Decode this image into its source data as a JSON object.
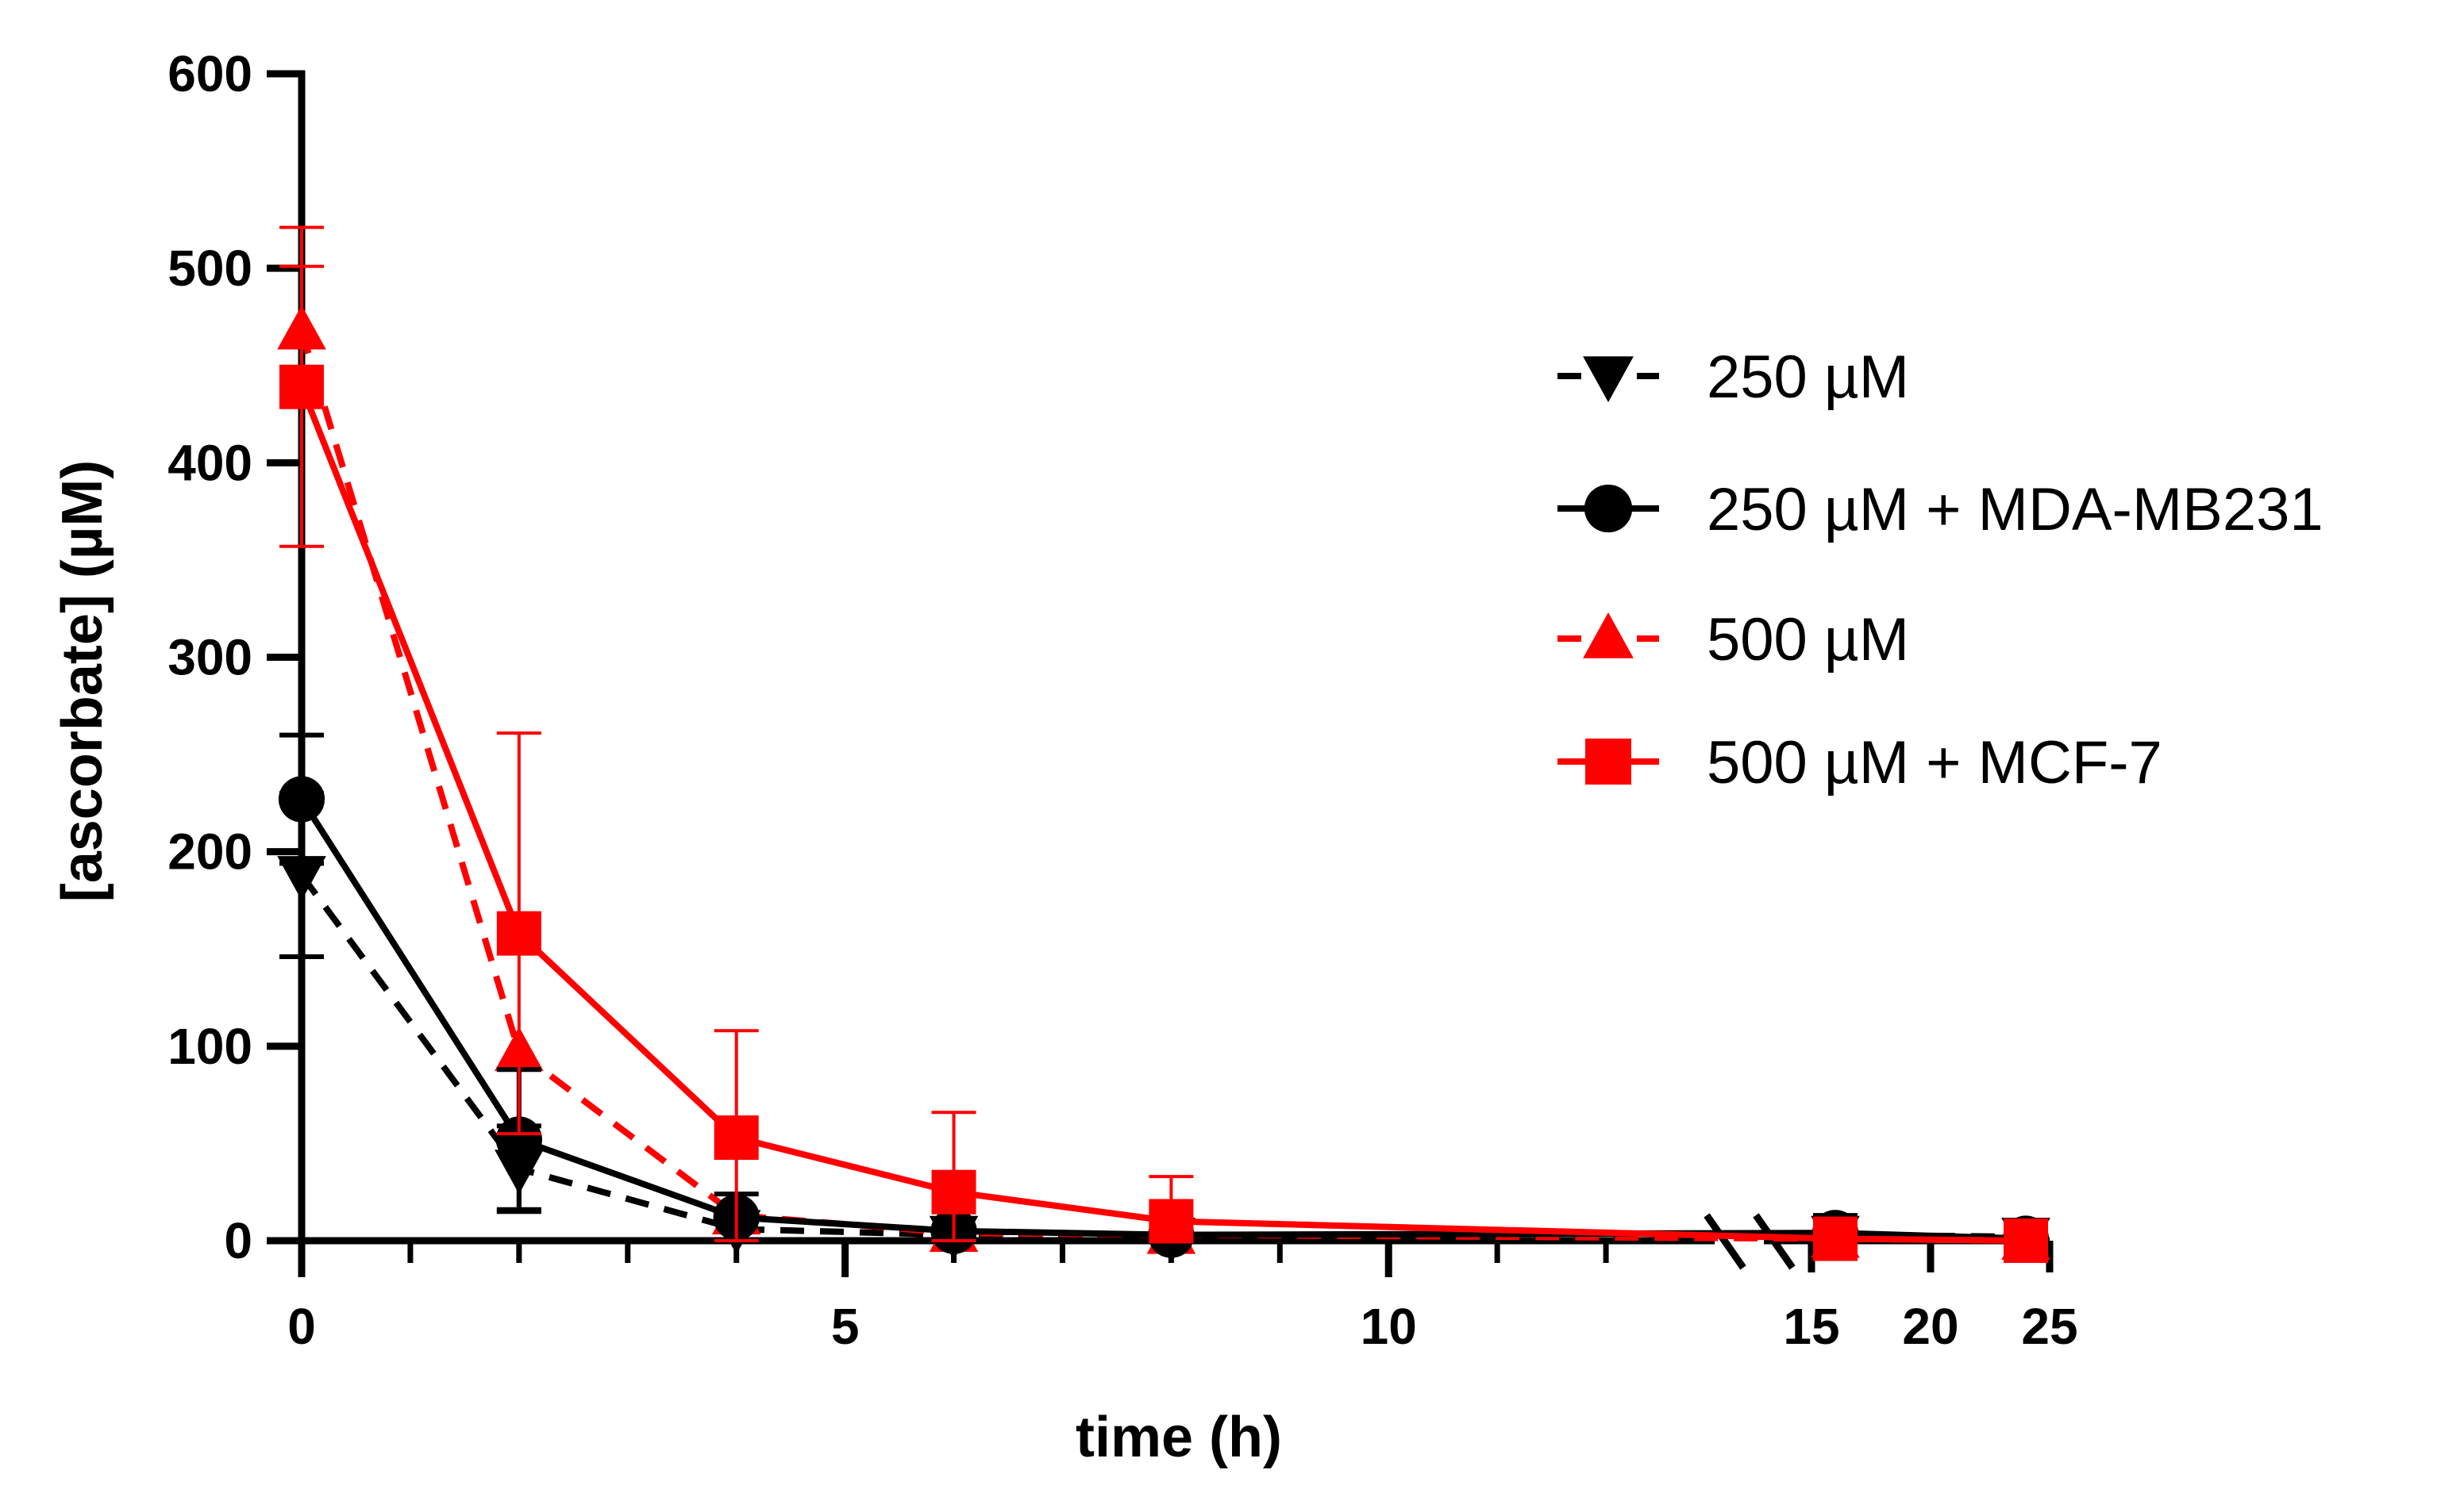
{
  "chart_data": {
    "type": "line",
    "title": "",
    "xlabel": "time (h)",
    "ylabel": "[ascorbate] (µM)",
    "ylim": [
      0,
      600
    ],
    "y_ticks": [
      0,
      100,
      200,
      300,
      400,
      500,
      600
    ],
    "x_axis_segments": [
      {
        "range": [
          0,
          13
        ],
        "major_ticks": [
          0,
          5,
          10
        ],
        "minor_ticks": [
          1,
          2,
          3,
          4,
          6,
          7,
          8,
          9,
          11,
          12
        ]
      },
      {
        "range": [
          13,
          25
        ],
        "major_ticks": [
          15,
          20,
          25
        ]
      }
    ],
    "x_tick_labels": [
      "0",
      "5",
      "10",
      "15",
      "20",
      "25"
    ],
    "axis_break": "between 13 and 15",
    "legend_position": "right",
    "series": [
      {
        "name": "250 µM",
        "color": "#000000",
        "line_style": "dashed",
        "marker": "triangle-down",
        "x": [
          0,
          2,
          4,
          6,
          8,
          16,
          24
        ],
        "y": [
          188,
          37,
          6,
          3,
          2,
          3,
          2
        ],
        "err": [
          42,
          22,
          0,
          0,
          0,
          0,
          0
        ]
      },
      {
        "name": "250 µM + MDA-MB231",
        "color": "#000000",
        "line_style": "solid",
        "marker": "circle",
        "x": [
          0,
          2,
          4,
          6,
          8,
          16,
          24
        ],
        "y": [
          227,
          52,
          12,
          5,
          3,
          4,
          1
        ],
        "err": [
          33,
          36,
          12,
          0,
          0,
          9,
          8
        ]
      },
      {
        "name": "500 µM",
        "color": "#ff0000",
        "line_style": "dashed",
        "marker": "triangle-up",
        "x": [
          0,
          2,
          4,
          6,
          8,
          16,
          24
        ],
        "y": [
          468,
          97,
          13,
          4,
          3,
          1,
          0
        ],
        "err": [
          33,
          0,
          0,
          0,
          0,
          0,
          0
        ]
      },
      {
        "name": "500 µM + MCF-7",
        "color": "#ff0000",
        "line_style": "solid",
        "marker": "square",
        "x": [
          0,
          2,
          4,
          6,
          8,
          16,
          24
        ],
        "y": [
          439,
          158,
          53,
          25,
          10,
          1,
          0
        ],
        "err": [
          82,
          103,
          55,
          41,
          23,
          0,
          0
        ]
      }
    ]
  }
}
